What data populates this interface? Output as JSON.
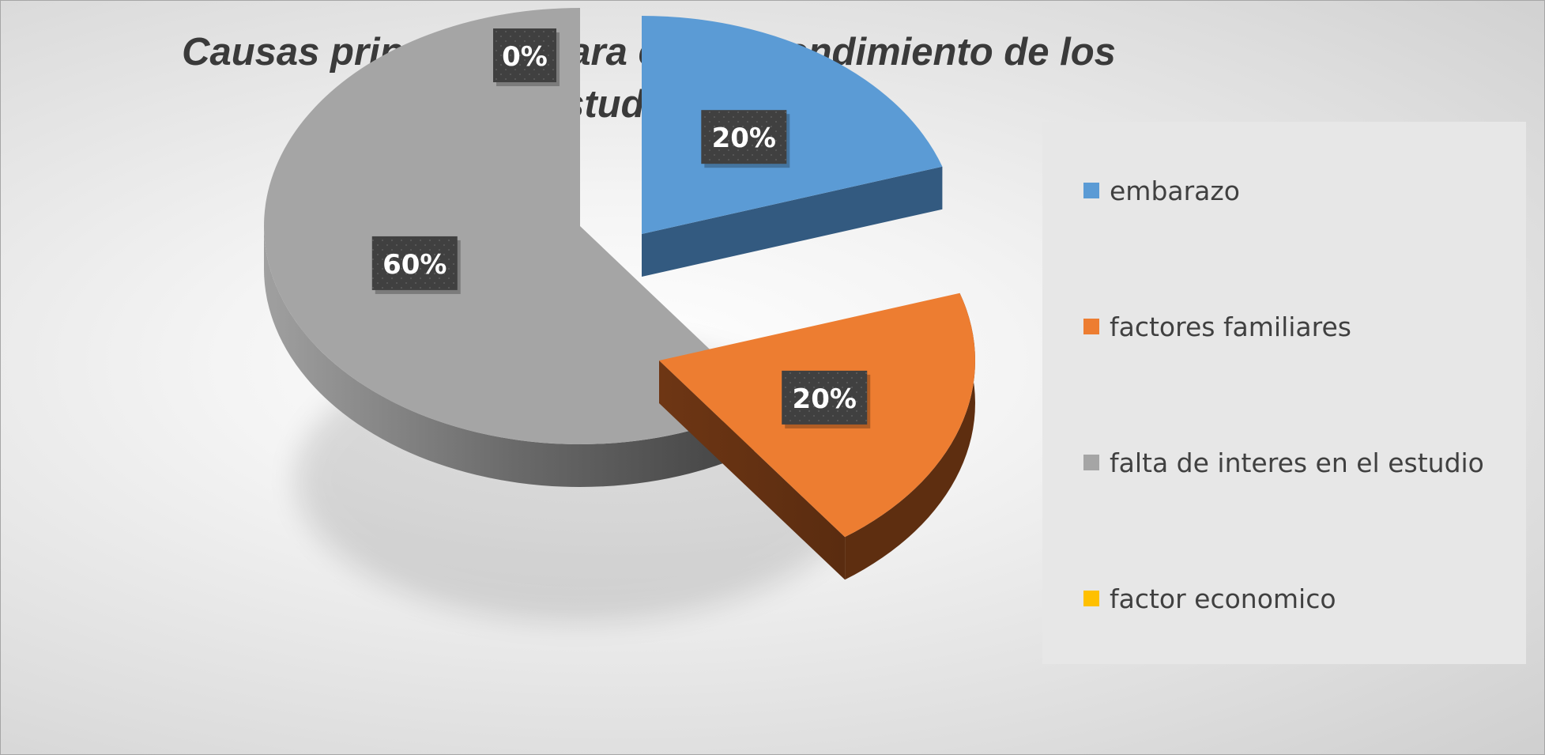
{
  "chart_data": {
    "type": "pie",
    "title_lines": [
      "Causas principales para el bajo rendimiento de los",
      "estudiantes"
    ],
    "categories": [
      "embarazo",
      "factores familiares",
      "falta de interes en el estudio",
      "factor economico"
    ],
    "values": [
      20,
      20,
      60,
      0
    ],
    "labels": [
      "20%",
      "20%",
      "60%",
      "0%"
    ],
    "colors": [
      "#5b9bd5",
      "#ed7d31",
      "#a5a5a5",
      "#ffc000"
    ],
    "legend_position": "right",
    "style": "3d exploded"
  }
}
